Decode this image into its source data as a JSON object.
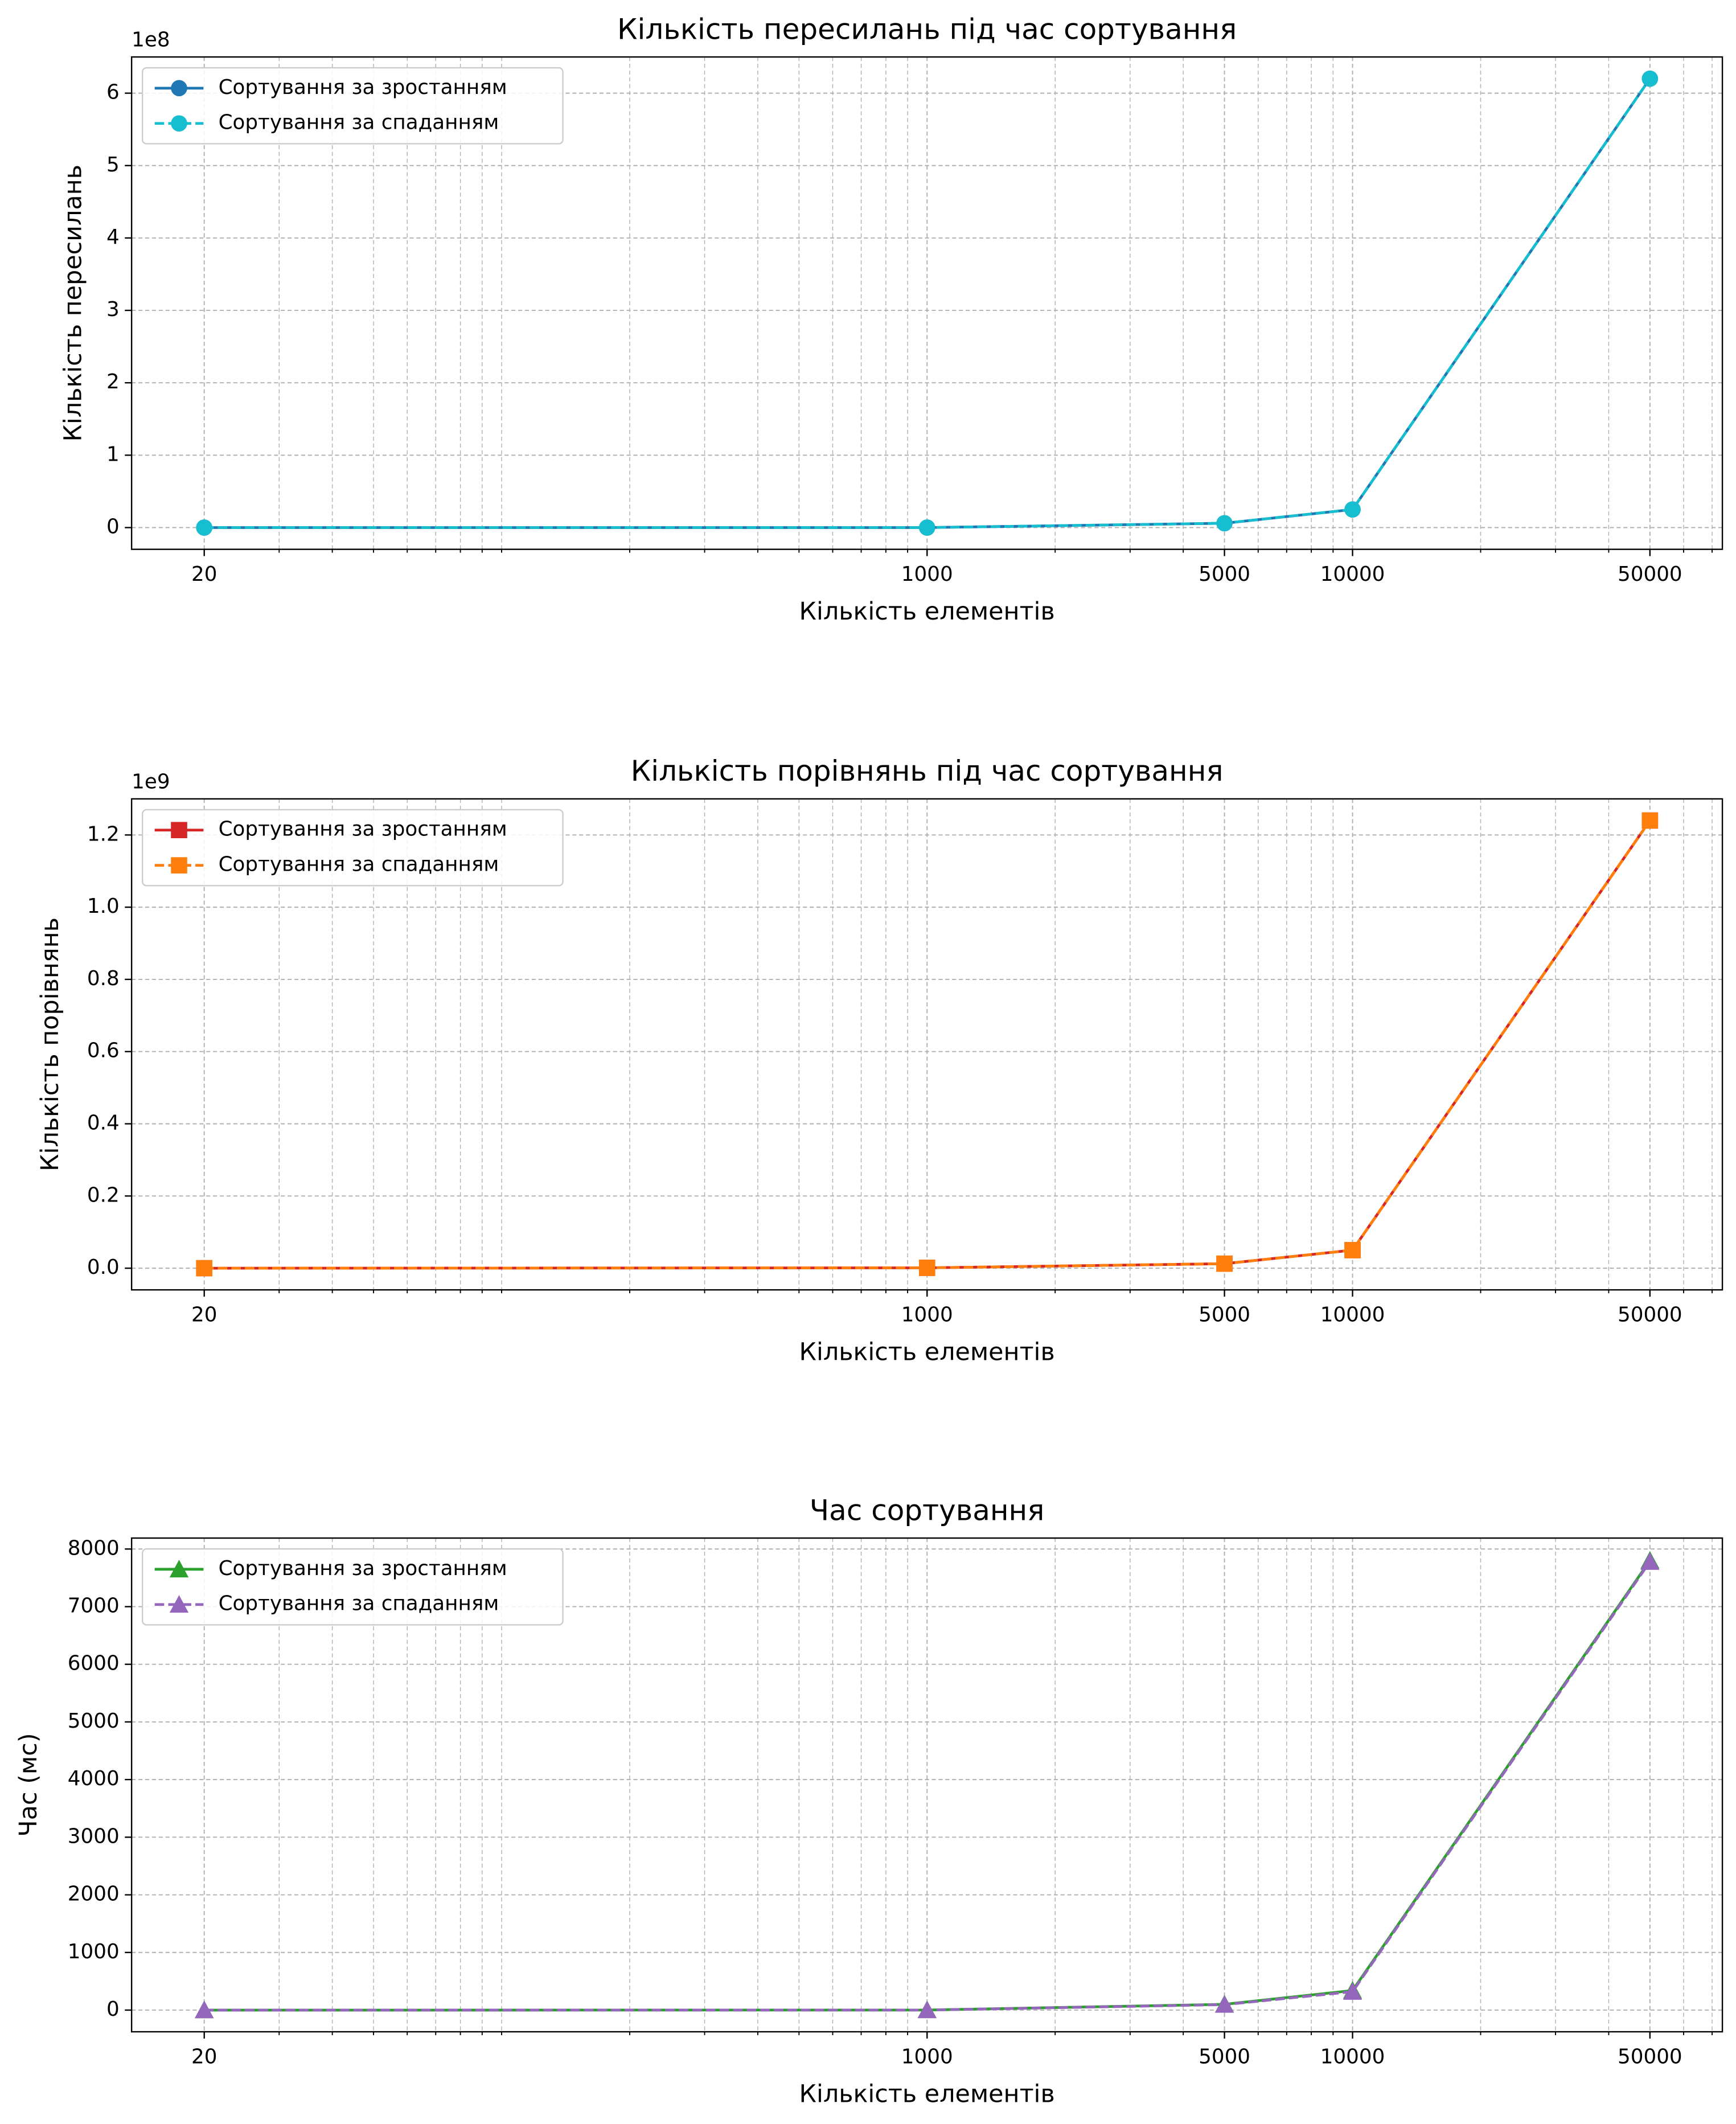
{
  "chart_data": [
    {
      "type": "line",
      "title": "Кількість пересилань під час сортування",
      "x_label": "Кількість елементів",
      "y_label": "Кількість пересилань",
      "offset_text": "1e8",
      "x": [
        20,
        1000,
        5000,
        10000,
        50000
      ],
      "xscale": "log",
      "xlim": [
        13.5,
        74000
      ],
      "xticks": [
        20,
        1000,
        5000,
        10000,
        50000
      ],
      "ylim": [
        -0.3,
        6.5
      ],
      "yticks": [
        0,
        1,
        2,
        3,
        4,
        5,
        6
      ],
      "grid": true,
      "minor_grid": true,
      "legend": "upper left",
      "series": [
        {
          "name": "Сортування за зростанням",
          "color": "#1f77b4",
          "linestyle": "solid",
          "marker": "circle",
          "values": [
            0,
            0,
            0.06,
            0.25,
            6.2
          ]
        },
        {
          "name": "Сортування за спаданням",
          "color": "#17becf",
          "linestyle": "dashed",
          "marker": "circle",
          "values": [
            0,
            0,
            0.06,
            0.25,
            6.2
          ]
        }
      ]
    },
    {
      "type": "line",
      "title": "Кількість порівнянь під час сортування",
      "x_label": "Кількість елементів",
      "y_label": "Кількість порівнянь",
      "offset_text": "1e9",
      "x": [
        20,
        1000,
        5000,
        10000,
        50000
      ],
      "xscale": "log",
      "xlim": [
        13.5,
        74000
      ],
      "xticks": [
        20,
        1000,
        5000,
        10000,
        50000
      ],
      "ylim": [
        -0.06,
        1.3
      ],
      "yticks": [
        {
          "value": 0,
          "label": "0.0"
        },
        0.2,
        0.4,
        0.6,
        0.8,
        {
          "value": 1,
          "label": "1.0"
        },
        1.2
      ],
      "grid": true,
      "minor_grid": true,
      "legend": "upper left",
      "series": [
        {
          "name": "Сортування за зростанням",
          "color": "#d62728",
          "linestyle": "solid",
          "marker": "square",
          "values": [
            0,
            0.001,
            0.0125,
            0.05,
            1.24
          ]
        },
        {
          "name": "Сортування за спаданням",
          "color": "#ff7f0e",
          "linestyle": "dashed",
          "marker": "square",
          "values": [
            0,
            0.001,
            0.0125,
            0.05,
            1.24
          ]
        }
      ]
    },
    {
      "type": "line",
      "title": "Час сортування",
      "x_label": "Кількість елементів",
      "y_label": "Час (мс)",
      "x": [
        20,
        1000,
        5000,
        10000,
        50000
      ],
      "xscale": "log",
      "xlim": [
        13.5,
        74000
      ],
      "xticks": [
        20,
        1000,
        5000,
        10000,
        50000
      ],
      "ylim": [
        -376,
        8190
      ],
      "yticks": [
        0,
        1000,
        2000,
        3000,
        4000,
        5000,
        6000,
        7000,
        8000
      ],
      "grid": true,
      "minor_grid": true,
      "legend": "upper left",
      "series": [
        {
          "name": "Сортування за зростанням",
          "color": "#2ca02c",
          "linestyle": "solid",
          "marker": "triangle",
          "values": [
            0,
            1,
            100,
            340,
            7800
          ]
        },
        {
          "name": "Сортування за спаданням",
          "color": "#9467bd",
          "linestyle": "dashed",
          "marker": "triangle",
          "values": [
            0,
            1,
            95,
            320,
            7780
          ]
        }
      ]
    }
  ]
}
